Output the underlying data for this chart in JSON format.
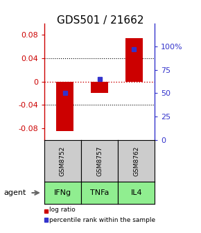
{
  "title": "GDS501 / 21662",
  "samples": [
    "GSM8752",
    "GSM8757",
    "GSM8762"
  ],
  "agents": [
    "IFNg",
    "TNFa",
    "IL4"
  ],
  "log_ratios": [
    -0.085,
    -0.02,
    0.075
  ],
  "percentile_ranks": [
    50.0,
    65.0,
    97.0
  ],
  "ylim_left": [
    -0.1,
    0.1
  ],
  "ylim_right": [
    0,
    125
  ],
  "yticks_left": [
    -0.08,
    -0.04,
    0.0,
    0.04,
    0.08
  ],
  "ytick_labels_left": [
    "-0.08",
    "-0.04",
    "0",
    "0.04",
    "0.08"
  ],
  "yticks_right": [
    0,
    25,
    50,
    75,
    100
  ],
  "ytick_labels_right": [
    "0",
    "25",
    "50",
    "75",
    "100%"
  ],
  "bar_color": "#cc0000",
  "square_color": "#3333cc",
  "agent_bg_color": "#90ee90",
  "sample_bg_color": "#cccccc",
  "bar_width": 0.5,
  "agent_label": "agent",
  "legend_log": "log ratio",
  "legend_pct": "percentile rank within the sample",
  "title_fontsize": 11,
  "tick_fontsize": 8,
  "label_fontsize": 8
}
